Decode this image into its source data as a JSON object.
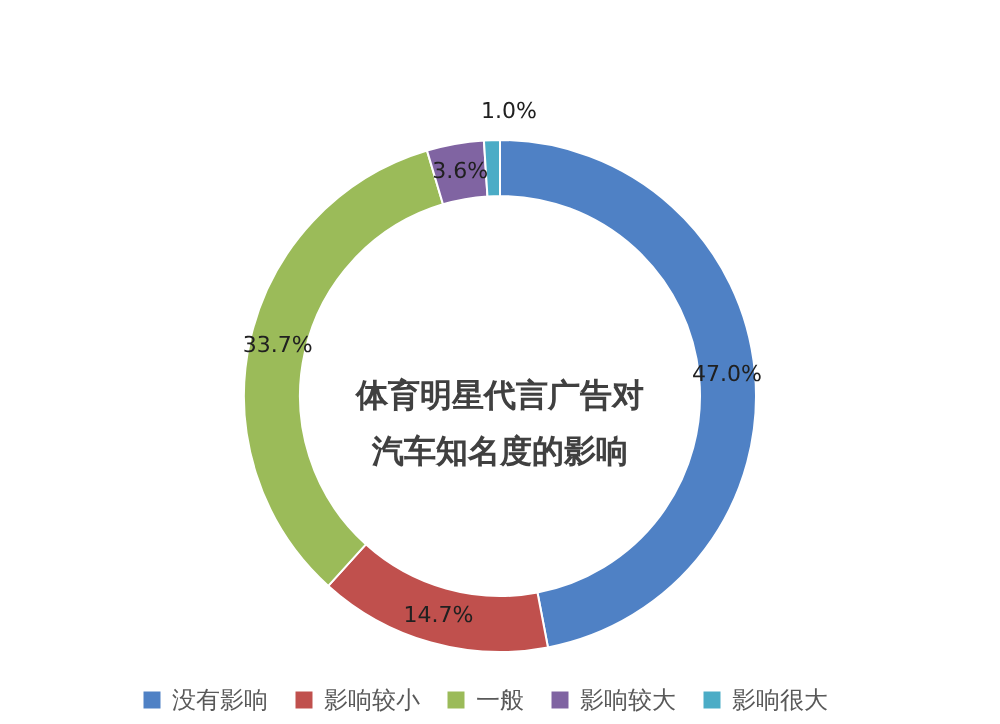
{
  "chart_data": {
    "type": "donut",
    "title": "体育明星代言广告对汽车知名度的影响",
    "categories": [
      "没有影响",
      "影响较小",
      "一般",
      "影响较大",
      "影响很大"
    ],
    "values": [
      47.0,
      14.7,
      33.7,
      3.6,
      1.0
    ],
    "colors": [
      "#4f81c5",
      "#c0504d",
      "#9bbb59",
      "#8064a2",
      "#4bacc6"
    ],
    "value_labels": [
      "47.0%",
      "14.7%",
      "33.7%",
      "3.6%",
      "1.0%"
    ],
    "legend": "bottom"
  }
}
